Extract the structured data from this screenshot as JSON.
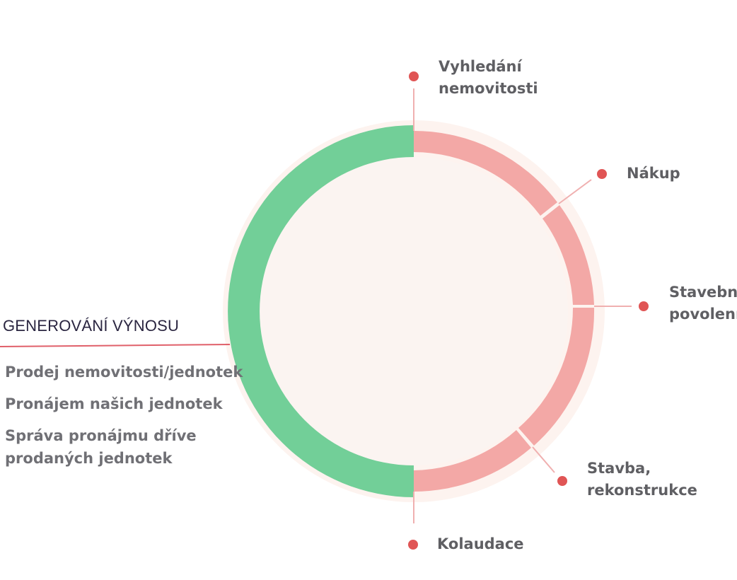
{
  "colors": {
    "inner_fill": "#fbf4f1",
    "outer_halo": "#fdf3ef",
    "green_arc": "#72cf98",
    "pink_arc": "#f3a8a6",
    "dot": "#e05555",
    "connector": "#f0b0b0",
    "heading_line": "#e0606a",
    "label_text": "#5f5f63",
    "heading_text": "#2a2540",
    "list_text": "#707075"
  },
  "stages": [
    {
      "id": "search",
      "lines": [
        "Vyhledání",
        "nemovitosti"
      ]
    },
    {
      "id": "purchase",
      "lines": [
        "Nákup"
      ]
    },
    {
      "id": "permit",
      "lines": [
        "Stavební",
        "povolení"
      ]
    },
    {
      "id": "build",
      "lines": [
        "Stavba,",
        "rekonstrukce"
      ]
    },
    {
      "id": "inspection",
      "lines": [
        "Kolaudace"
      ]
    }
  ],
  "revenue": {
    "heading": "GENEROVÁNÍ VÝNOSU",
    "items": [
      {
        "lines": [
          "Prodej nemovitosti/jednotek"
        ]
      },
      {
        "lines": [
          "Pronájem našich jednotek"
        ]
      },
      {
        "lines": [
          "Správa pronájmu dříve",
          "prodaných jednotek"
        ]
      }
    ]
  }
}
